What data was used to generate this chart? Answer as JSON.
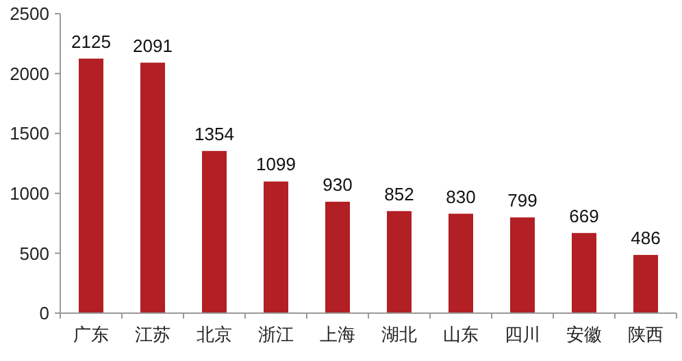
{
  "chart_data": {
    "type": "bar",
    "categories": [
      "广东",
      "江苏",
      "北京",
      "浙江",
      "上海",
      "湖北",
      "山东",
      "四川",
      "安徽",
      "陕西"
    ],
    "values": [
      2125,
      2091,
      1354,
      1099,
      930,
      852,
      830,
      799,
      669,
      486
    ],
    "color": "#b21f24",
    "ylim": [
      0,
      2500
    ],
    "yticks": [
      0,
      500,
      1000,
      1500,
      2000,
      2500
    ],
    "data_labels": true
  }
}
